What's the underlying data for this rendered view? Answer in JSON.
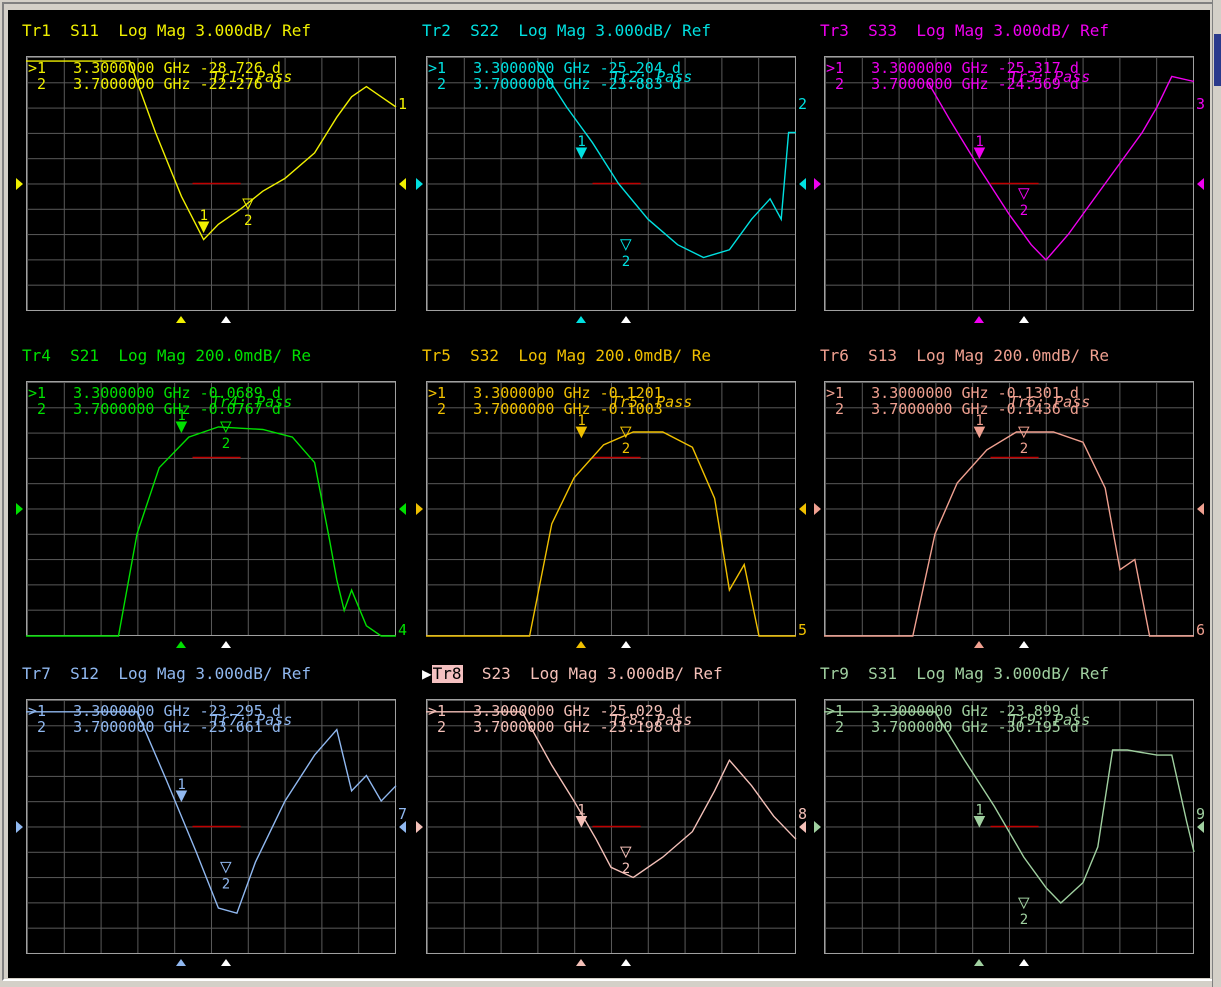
{
  "traces": [
    {
      "id": "tr1",
      "title": "Tr1  S11  Log Mag 3.000dB/ Ref",
      "color": "#f0f000",
      "marker1": ">1   3.3000000 GHz -28.726 d",
      "marker2": " 2   3.7000000 GHz -22.276 d",
      "pass": "Tr1: Pass",
      "end": "1",
      "highlight": false
    },
    {
      "id": "tr2",
      "title": "Tr2  S22  Log Mag 3.000dB/ Ref",
      "color": "#00e0e0",
      "marker1": ">1   3.3000000 GHz -25.204 d",
      "marker2": " 2   3.7000000 GHz -23.883 d",
      "pass": "Tr2: Pass",
      "end": "2",
      "highlight": false
    },
    {
      "id": "tr3",
      "title": "Tr3  S33  Log Mag 3.000dB/ Ref",
      "color": "#f000f0",
      "marker1": ">1   3.3000000 GHz -25.317 d",
      "marker2": " 2   3.7000000 GHz -24.569 d",
      "pass": "Tr3: Pass",
      "end": "3",
      "highlight": false
    },
    {
      "id": "tr4",
      "title": "Tr4  S21  Log Mag 200.0mdB/ Re",
      "color": "#00e000",
      "marker1": ">1   3.3000000 GHz -0.0689 d",
      "marker2": " 2   3.7000000 GHz -0.0767 d",
      "pass": "Tr4: Pass",
      "end": "4",
      "highlight": false
    },
    {
      "id": "tr5",
      "title": "Tr5  S32  Log Mag 200.0mdB/ Re",
      "color": "#f0c000",
      "marker1": ">1   3.3000000 GHz -0.1201",
      "marker2": " 2   3.7000000 GHz -0.1003",
      "pass": "Tr5: Pass",
      "end": "5",
      "highlight": false
    },
    {
      "id": "tr6",
      "title": "Tr6  S13  Log Mag 200.0mdB/ Re",
      "color": "#f0a090",
      "marker1": ">1   3.3000000 GHz -0.1301 d",
      "marker2": " 2   3.7000000 GHz -0.1436 d",
      "pass": "Tr6: Pass",
      "end": "6",
      "highlight": false
    },
    {
      "id": "tr7",
      "title": "Tr7  S12  Log Mag 3.000dB/ Ref",
      "color": "#90b8f0",
      "marker1": ">1   3.3000000 GHz -23.295 d",
      "marker2": " 2   3.7000000 GHz -23.661 d",
      "pass": "Tr7: Pass",
      "end": "7",
      "highlight": false
    },
    {
      "id": "tr8",
      "title": "  S23  Log Mag 3.000dB/ Ref",
      "titlehl": "Tr8",
      "color": "#f4c0b8",
      "marker1": ">1   3.3000000 GHz -25.029 d",
      "marker2": " 2   3.7000000 GHz -23.198 d",
      "pass": "Tr8: Pass",
      "end": "8",
      "highlight": true
    },
    {
      "id": "tr9",
      "title": "Tr9  S31  Log Mag 3.000dB/ Ref",
      "color": "#a0d0a0",
      "marker1": ">1   3.3000000 GHz -23.899 d",
      "marker2": " 2   3.7000000 GHz -30.195 d",
      "pass": "Tr9: Pass",
      "end": "9",
      "highlight": false
    }
  ]
}
